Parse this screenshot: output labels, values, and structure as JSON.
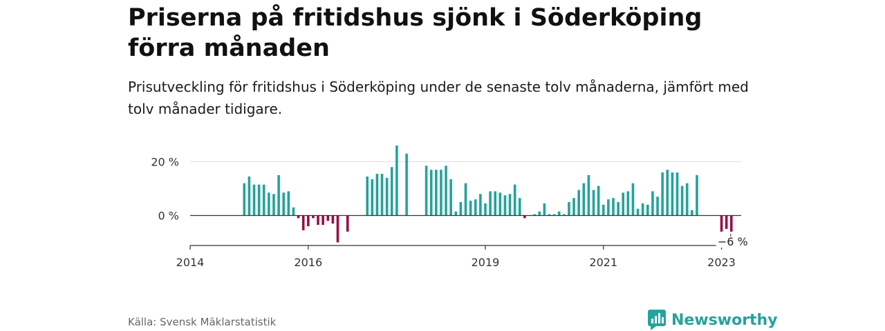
{
  "header": {
    "title": "Priserna på fritidshus sjönk i Söderköping förra månaden",
    "subtitle": "Prisutveckling för fritidshus i Söderköping under de senaste tolv månaderna, jämfört med tolv månader tidigare."
  },
  "footer": {
    "source": "Källa: Svensk Mäklarstatistik",
    "brand": "Newsworthy"
  },
  "colors": {
    "positive": "#23a39b",
    "negative": "#9b0d41",
    "grid": "#dddddd",
    "axis": "#333333"
  },
  "chart_data": {
    "type": "bar",
    "x_start": "2014-01",
    "x_end": "2023-05",
    "x_ticks": [
      {
        "date": "2014-01",
        "label": "2014"
      },
      {
        "date": "2016-01",
        "label": "2016"
      },
      {
        "date": "2019-01",
        "label": "2019"
      },
      {
        "date": "2021-01",
        "label": "2021"
      },
      {
        "date": "2023-01",
        "label": "2023"
      }
    ],
    "y_ticks": [
      {
        "value": 0,
        "label": "0 %"
      },
      {
        "value": 20,
        "label": "20 %"
      }
    ],
    "ylim": [
      -10,
      25
    ],
    "grid": true,
    "annotation": {
      "date": "2023-03",
      "value": -6,
      "label": "−6 %"
    },
    "series": [
      {
        "points": [
          {
            "x": "2014-12",
            "y": 12
          },
          {
            "x": "2015-01",
            "y": 14.5
          },
          {
            "x": "2015-02",
            "y": 11.5
          },
          {
            "x": "2015-03",
            "y": 11.5
          },
          {
            "x": "2015-04",
            "y": 11.5
          },
          {
            "x": "2015-05",
            "y": 8.5
          },
          {
            "x": "2015-06",
            "y": 8
          },
          {
            "x": "2015-07",
            "y": 15
          },
          {
            "x": "2015-08",
            "y": 8.5
          },
          {
            "x": "2015-09",
            "y": 9
          },
          {
            "x": "2015-10",
            "y": 3
          },
          {
            "x": "2015-11",
            "y": -1
          },
          {
            "x": "2015-12",
            "y": -5.5
          },
          {
            "x": "2016-01",
            "y": -4
          },
          {
            "x": "2016-02",
            "y": -1
          },
          {
            "x": "2016-03",
            "y": -3.5
          },
          {
            "x": "2016-04",
            "y": -3.5
          },
          {
            "x": "2016-05",
            "y": -2
          },
          {
            "x": "2016-06",
            "y": -3
          },
          {
            "x": "2016-07",
            "y": -10
          },
          {
            "x": "2016-09",
            "y": -6
          },
          {
            "x": "2017-01",
            "y": 14.5
          },
          {
            "x": "2017-02",
            "y": 13.5
          },
          {
            "x": "2017-03",
            "y": 15.5
          },
          {
            "x": "2017-04",
            "y": 15.5
          },
          {
            "x": "2017-05",
            "y": 14
          },
          {
            "x": "2017-06",
            "y": 18
          },
          {
            "x": "2017-07",
            "y": 26
          },
          {
            "x": "2017-09",
            "y": 23
          },
          {
            "x": "2018-01",
            "y": 18.5
          },
          {
            "x": "2018-02",
            "y": 17
          },
          {
            "x": "2018-03",
            "y": 17
          },
          {
            "x": "2018-04",
            "y": 17
          },
          {
            "x": "2018-05",
            "y": 18.5
          },
          {
            "x": "2018-06",
            "y": 13.5
          },
          {
            "x": "2018-07",
            "y": 1.5
          },
          {
            "x": "2018-08",
            "y": 5
          },
          {
            "x": "2018-09",
            "y": 12
          },
          {
            "x": "2018-10",
            "y": 5.5
          },
          {
            "x": "2018-11",
            "y": 6
          },
          {
            "x": "2018-12",
            "y": 8
          },
          {
            "x": "2019-01",
            "y": 4.5
          },
          {
            "x": "2019-02",
            "y": 9
          },
          {
            "x": "2019-03",
            "y": 9
          },
          {
            "x": "2019-04",
            "y": 8.5
          },
          {
            "x": "2019-05",
            "y": 7.5
          },
          {
            "x": "2019-06",
            "y": 8
          },
          {
            "x": "2019-07",
            "y": 11.5
          },
          {
            "x": "2019-08",
            "y": 6.5
          },
          {
            "x": "2019-09",
            "y": -1
          },
          {
            "x": "2019-11",
            "y": 0.5
          },
          {
            "x": "2019-12",
            "y": 1.5
          },
          {
            "x": "2020-01",
            "y": 4.5
          },
          {
            "x": "2020-02",
            "y": 0.5
          },
          {
            "x": "2020-03",
            "y": 0.5
          },
          {
            "x": "2020-04",
            "y": 1.5
          },
          {
            "x": "2020-05",
            "y": 0.5
          },
          {
            "x": "2020-06",
            "y": 5
          },
          {
            "x": "2020-07",
            "y": 6.5
          },
          {
            "x": "2020-08",
            "y": 9.5
          },
          {
            "x": "2020-09",
            "y": 12
          },
          {
            "x": "2020-10",
            "y": 15
          },
          {
            "x": "2020-11",
            "y": 9.5
          },
          {
            "x": "2020-12",
            "y": 11
          },
          {
            "x": "2021-01",
            "y": 4
          },
          {
            "x": "2021-02",
            "y": 6
          },
          {
            "x": "2021-03",
            "y": 6.5
          },
          {
            "x": "2021-04",
            "y": 5
          },
          {
            "x": "2021-05",
            "y": 8.5
          },
          {
            "x": "2021-06",
            "y": 9
          },
          {
            "x": "2021-07",
            "y": 12
          },
          {
            "x": "2021-08",
            "y": 2.5
          },
          {
            "x": "2021-09",
            "y": 4.5
          },
          {
            "x": "2021-10",
            "y": 4
          },
          {
            "x": "2021-11",
            "y": 9
          },
          {
            "x": "2021-12",
            "y": 7
          },
          {
            "x": "2022-01",
            "y": 16
          },
          {
            "x": "2022-02",
            "y": 17
          },
          {
            "x": "2022-03",
            "y": 16
          },
          {
            "x": "2022-04",
            "y": 16
          },
          {
            "x": "2022-05",
            "y": 11
          },
          {
            "x": "2022-06",
            "y": 12
          },
          {
            "x": "2022-07",
            "y": 2
          },
          {
            "x": "2022-08",
            "y": 15
          },
          {
            "x": "2023-01",
            "y": -6
          },
          {
            "x": "2023-02",
            "y": -5
          },
          {
            "x": "2023-03",
            "y": -6
          }
        ]
      }
    ]
  }
}
